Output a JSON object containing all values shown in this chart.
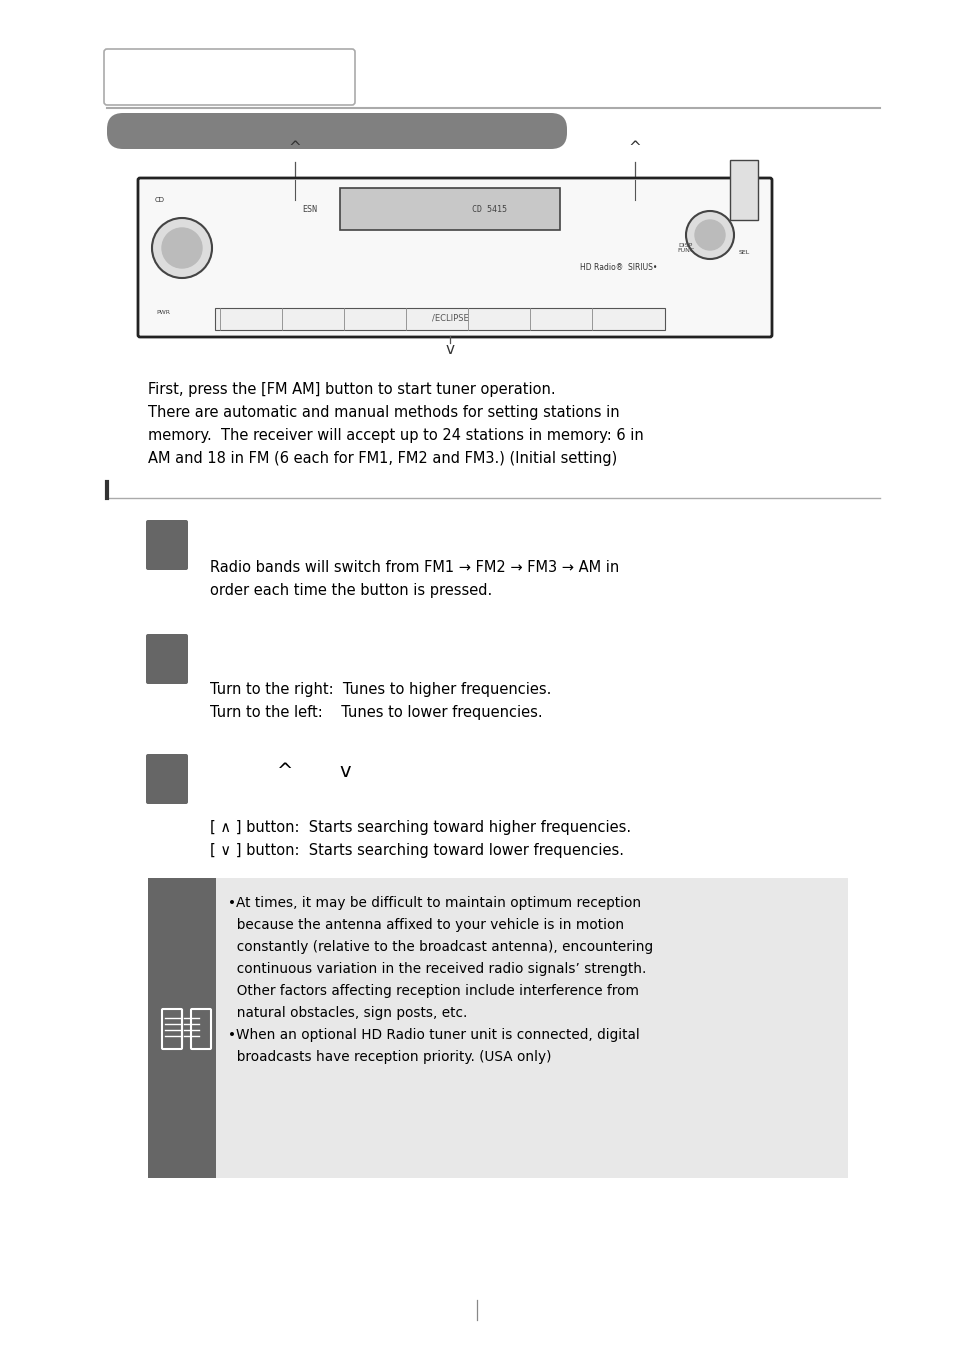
{
  "bg_color": "#ffffff",
  "header_tab_border": "#aaaaaa",
  "header_bar_color": "#808080",
  "section_line_color": "#555555",
  "button_color": "#666666",
  "note_bg_color": "#e8e8e8",
  "note_left_color": "#666666",
  "text_color": "#000000",
  "intro_text_lines": [
    "First, press the [FM AM] button to start tuner operation.",
    "There are automatic and manual methods for setting stations in",
    "memory.  The receiver will accept up to 24 stations in memory: 6 in",
    "AM and 18 in FM (6 each for FM1, FM2 and FM3.) (Initial setting)"
  ],
  "section1_line1": "Radio bands will switch from FM1 → FM2 → FM3 → AM in",
  "section1_line2": "order each time the button is pressed.",
  "section2_line1": "Turn to the right:  Tunes to higher frequencies.",
  "section2_line2": "Turn to the left:    Tunes to lower frequencies.",
  "section3_line1": "[ ∧ ] button:  Starts searching toward higher frequencies.",
  "section3_line2": "[ ∨ ] button:  Starts searching toward lower frequencies.",
  "note_lines": [
    "•At times, it may be difficult to maintain optimum reception",
    "  because the antenna affixed to your vehicle is in motion",
    "  constantly (relative to the broadcast antenna), encountering",
    "  continuous variation in the received radio signals’ strength.",
    "  Other factors affecting reception include interference from",
    "  natural obstacles, sign posts, etc.",
    "•When an optional HD Radio tuner unit is connected, digital",
    "  broadcasts have reception priority. (USA only)"
  ]
}
